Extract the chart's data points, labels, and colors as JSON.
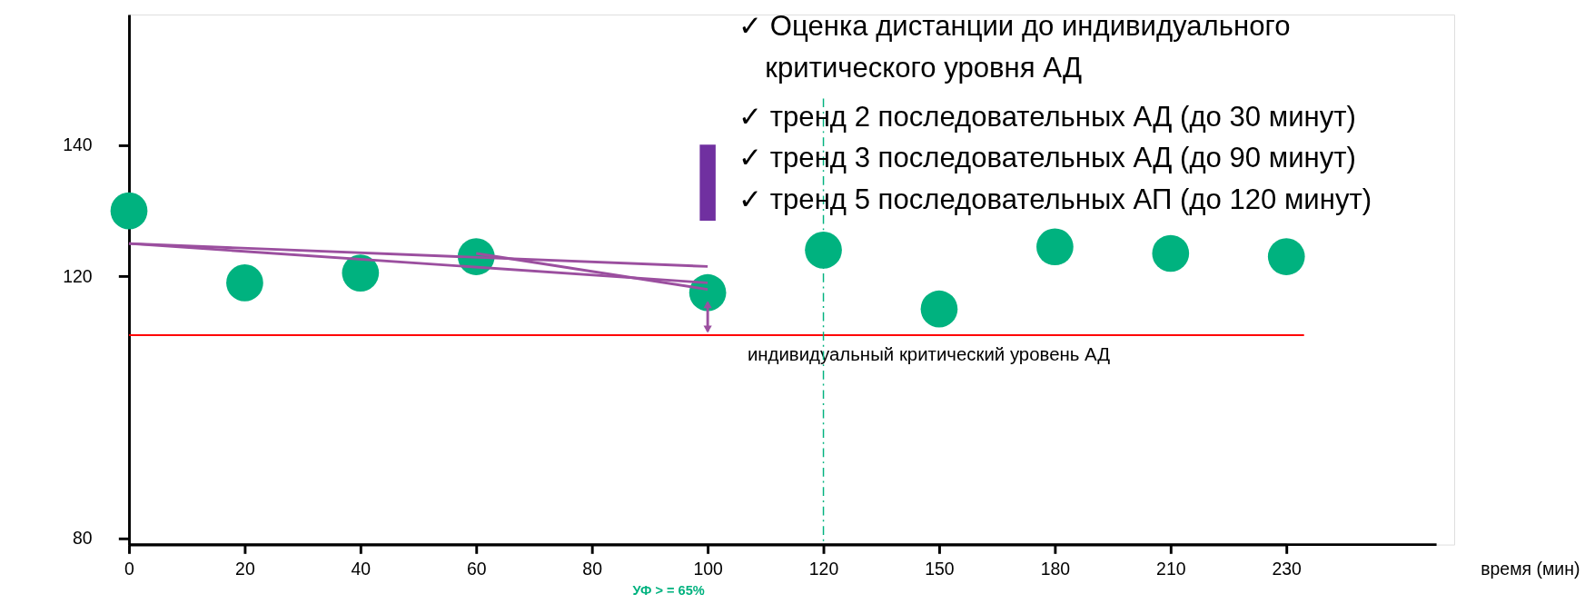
{
  "chart_data": {
    "type": "scatter",
    "categories": [
      "0",
      "20",
      "40",
      "60",
      "80",
      "100",
      "120",
      "150",
      "180",
      "210",
      "230"
    ],
    "marker": "circle",
    "series": [
      {
        "color": "#00b27f",
        "values": [
          130,
          119,
          120.5,
          123,
          null,
          117.5,
          124,
          115,
          124.5,
          123.5,
          123
        ]
      },
      {
        "type": "line",
        "color": "#9b4f9f",
        "line_style": "solid",
        "marker": "none",
        "x": [
          "0",
          "100"
        ],
        "values": [
          125,
          121.5
        ]
      },
      {
        "type": "line",
        "color": "#9b4f9f",
        "line_style": "solid",
        "marker": "none",
        "x": [
          "0",
          "100"
        ],
        "values": [
          125,
          119
        ]
      },
      {
        "type": "line",
        "color": "#9b4f9f",
        "line_style": "solid",
        "marker": "none",
        "x": [
          "60",
          "100"
        ],
        "values": [
          123.5,
          118
        ]
      }
    ],
    "ylim": [
      79,
      160
    ],
    "yticks": [
      80,
      120,
      140
    ],
    "ref_lines": [
      {
        "axis": "y",
        "value": 111,
        "color": "#ff0000",
        "line_style": "solid",
        "label": "индивидуальный критический уровень АД"
      },
      {
        "axis": "x",
        "value": "120",
        "color": "#00b27f",
        "line_style": "dashed"
      }
    ],
    "annotations": [
      "✓ Оценка дистанции до индивидуального",
      "критического уровня АД",
      "✓ тренд 2 последовательных АД (до 30 минут)",
      "✓ тренд 3 последовательных АД (до 90 минут)",
      "✓ тренд 5 последовательных АП (до 120 минут)",
      "УФ  > =  65%",
      "время (мин)"
    ]
  }
}
